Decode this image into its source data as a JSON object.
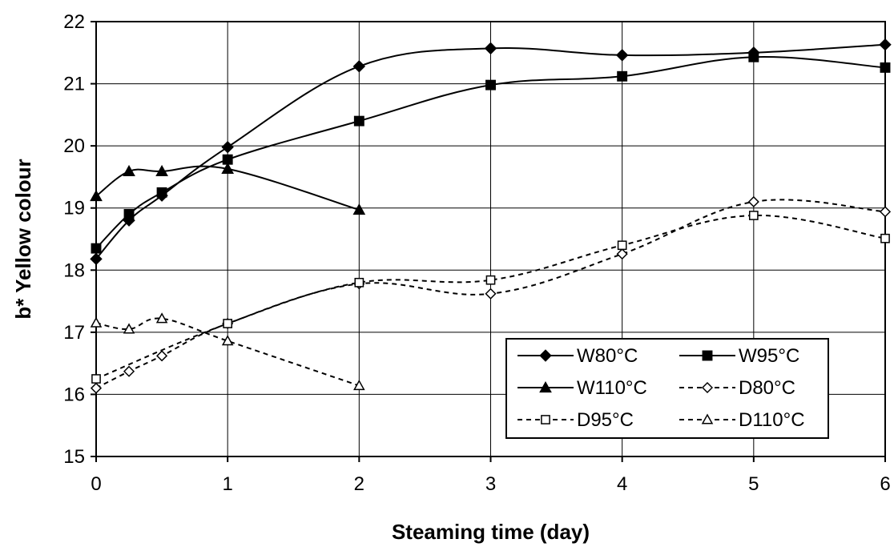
{
  "chart_data": {
    "type": "line",
    "title": "",
    "xlabel": "Steaming time (day)",
    "ylabel": "b* Yellow colour",
    "xlim": [
      0,
      6
    ],
    "ylim": [
      15,
      22
    ],
    "xticks": [
      0,
      1,
      2,
      3,
      4,
      5,
      6
    ],
    "yticks": [
      15,
      16,
      17,
      18,
      19,
      20,
      21,
      22
    ],
    "grid": true,
    "legend_position": "bottom-right",
    "series": [
      {
        "name": "W80°C",
        "marker": "diamond",
        "filled": true,
        "style": "solid",
        "x": [
          0,
          0.25,
          0.5,
          1,
          2,
          3,
          4,
          5,
          6
        ],
        "y": [
          18.18,
          18.8,
          19.2,
          19.98,
          21.28,
          21.57,
          21.46,
          21.5,
          21.63
        ]
      },
      {
        "name": "W95°C",
        "marker": "square",
        "filled": true,
        "style": "solid",
        "x": [
          0,
          0.25,
          0.5,
          1,
          2,
          3,
          4,
          5,
          6
        ],
        "y": [
          18.35,
          18.9,
          19.25,
          19.78,
          20.4,
          20.98,
          21.12,
          21.43,
          21.26
        ]
      },
      {
        "name": "W110°C",
        "marker": "triangle",
        "filled": true,
        "style": "solid",
        "x": [
          0,
          0.25,
          0.5,
          1,
          2
        ],
        "y": [
          19.19,
          19.59,
          19.59,
          19.63,
          18.97
        ]
      },
      {
        "name": "D80°C",
        "marker": "diamond",
        "filled": false,
        "style": "dashed",
        "x": [
          0,
          0.25,
          0.5,
          1,
          2,
          3,
          4,
          5,
          6
        ],
        "y": [
          16.1,
          16.37,
          16.62,
          17.14,
          17.78,
          17.62,
          18.26,
          19.1,
          18.94
        ]
      },
      {
        "name": "D95°C",
        "marker": "square",
        "filled": false,
        "style": "dashed",
        "x": [
          0,
          1,
          2,
          3,
          4,
          5,
          6
        ],
        "y": [
          16.25,
          17.14,
          17.8,
          17.84,
          18.4,
          18.88,
          18.51
        ]
      },
      {
        "name": "D110°C",
        "marker": "triangle",
        "filled": false,
        "style": "dashed",
        "x": [
          0,
          0.25,
          0.5,
          1,
          2
        ],
        "y": [
          17.15,
          17.05,
          17.22,
          16.86,
          16.14
        ]
      }
    ]
  }
}
